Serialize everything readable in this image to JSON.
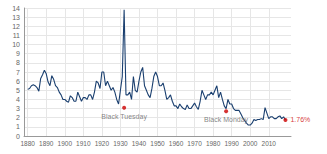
{
  "chart_data": {
    "type": "line",
    "color": "#1a3f6f",
    "x": [
      1880,
      1881,
      1882,
      1883,
      1884,
      1885,
      1886,
      1887,
      1888,
      1889,
      1890,
      1891,
      1892,
      1893,
      1894,
      1895,
      1896,
      1897,
      1898,
      1899,
      1900,
      1901,
      1902,
      1903,
      1904,
      1905,
      1906,
      1907,
      1908,
      1909,
      1910,
      1911,
      1912,
      1913,
      1914,
      1915,
      1916,
      1917,
      1918,
      1919,
      1920,
      1921,
      1922,
      1923,
      1924,
      1925,
      1926,
      1927,
      1928,
      1929,
      1930,
      1931,
      1932,
      1933,
      1934,
      1935,
      1936,
      1937,
      1938,
      1939,
      1940,
      1941,
      1942,
      1943,
      1944,
      1945,
      1946,
      1947,
      1948,
      1949,
      1950,
      1951,
      1952,
      1953,
      1954,
      1955,
      1956,
      1957,
      1958,
      1959,
      1960,
      1961,
      1962,
      1963,
      1964,
      1965,
      1966,
      1967,
      1968,
      1969,
      1970,
      1971,
      1972,
      1973,
      1974,
      1975,
      1976,
      1977,
      1978,
      1979,
      1980,
      1981,
      1982,
      1983,
      1984,
      1985,
      1986,
      1987,
      1988,
      1989,
      1990,
      1991,
      1992,
      1993,
      1994,
      1995,
      1996,
      1997,
      1998,
      1999,
      2000,
      2001,
      2002,
      2003,
      2004,
      2005,
      2006,
      2007,
      2008,
      2009,
      2010,
      2011,
      2012,
      2013,
      2014,
      2015,
      2016,
      2017,
      2018,
      2019
    ],
    "values": [
      5.1,
      5.2,
      5.5,
      5.6,
      5.5,
      5.3,
      4.9,
      6.3,
      6.7,
      7.2,
      6.8,
      5.9,
      5.5,
      6.6,
      6.2,
      5.5,
      5.3,
      4.8,
      4.5,
      4.0,
      4.0,
      3.8,
      3.7,
      4.4,
      4.2,
      3.8,
      3.8,
      4.8,
      4.3,
      3.8,
      4.2,
      4.2,
      4.0,
      4.5,
      4.5,
      4.0,
      4.8,
      6.0,
      5.8,
      5.2,
      7.0,
      7.0,
      5.5,
      6.0,
      5.5,
      5.0,
      5.3,
      4.8,
      4.0,
      3.5,
      5.0,
      6.5,
      13.8,
      4.5,
      4.5,
      4.8,
      4.0,
      6.5,
      5.0,
      4.8,
      6.0,
      7.0,
      7.5,
      5.5,
      5.0,
      4.5,
      4.2,
      5.2,
      6.5,
      7.0,
      6.5,
      5.5,
      5.5,
      5.8,
      5.0,
      4.0,
      4.2,
      4.5,
      3.8,
      3.3,
      3.3,
      3.0,
      3.5,
      3.2,
      3.0,
      2.9,
      3.4,
      3.0,
      3.0,
      3.3,
      3.6,
      3.2,
      2.9,
      3.8,
      5.0,
      4.5,
      4.0,
      4.5,
      4.5,
      4.8,
      4.5,
      5.0,
      5.5,
      4.2,
      4.8,
      4.0,
      3.3,
      3.0,
      4.0,
      3.5,
      3.5,
      3.0,
      2.8,
      2.8,
      2.8,
      2.4,
      2.0,
      1.7,
      1.4,
      1.2,
      1.2,
      1.4,
      1.8,
      1.7,
      1.8,
      1.8,
      1.9,
      1.8,
      3.1,
      2.5,
      1.9,
      2.1,
      2.1,
      1.9,
      1.9,
      2.1,
      2.2,
      1.9,
      2.1,
      1.76
    ],
    "xlim": [
      1878,
      2022
    ],
    "ylim": [
      0,
      14
    ],
    "xticks": [
      1880,
      1890,
      1900,
      1910,
      1920,
      1930,
      1940,
      1950,
      1960,
      1970,
      1980,
      1990,
      2000,
      2010
    ],
    "yticks": [
      0,
      1,
      2,
      3,
      4,
      5,
      6,
      7,
      8,
      9,
      10,
      11,
      12,
      13,
      14
    ],
    "grid": true,
    "annotations": [
      {
        "text": "Black Tuesday",
        "x": 1932,
        "y": 3.1,
        "color": "#cc0000"
      },
      {
        "text": "Black Monday",
        "x": 1987,
        "y": 2.7,
        "color": "#cc0000"
      },
      {
        "text": "1.76%",
        "x": 2019,
        "y": 1.76,
        "color": "#cc0000"
      }
    ]
  }
}
